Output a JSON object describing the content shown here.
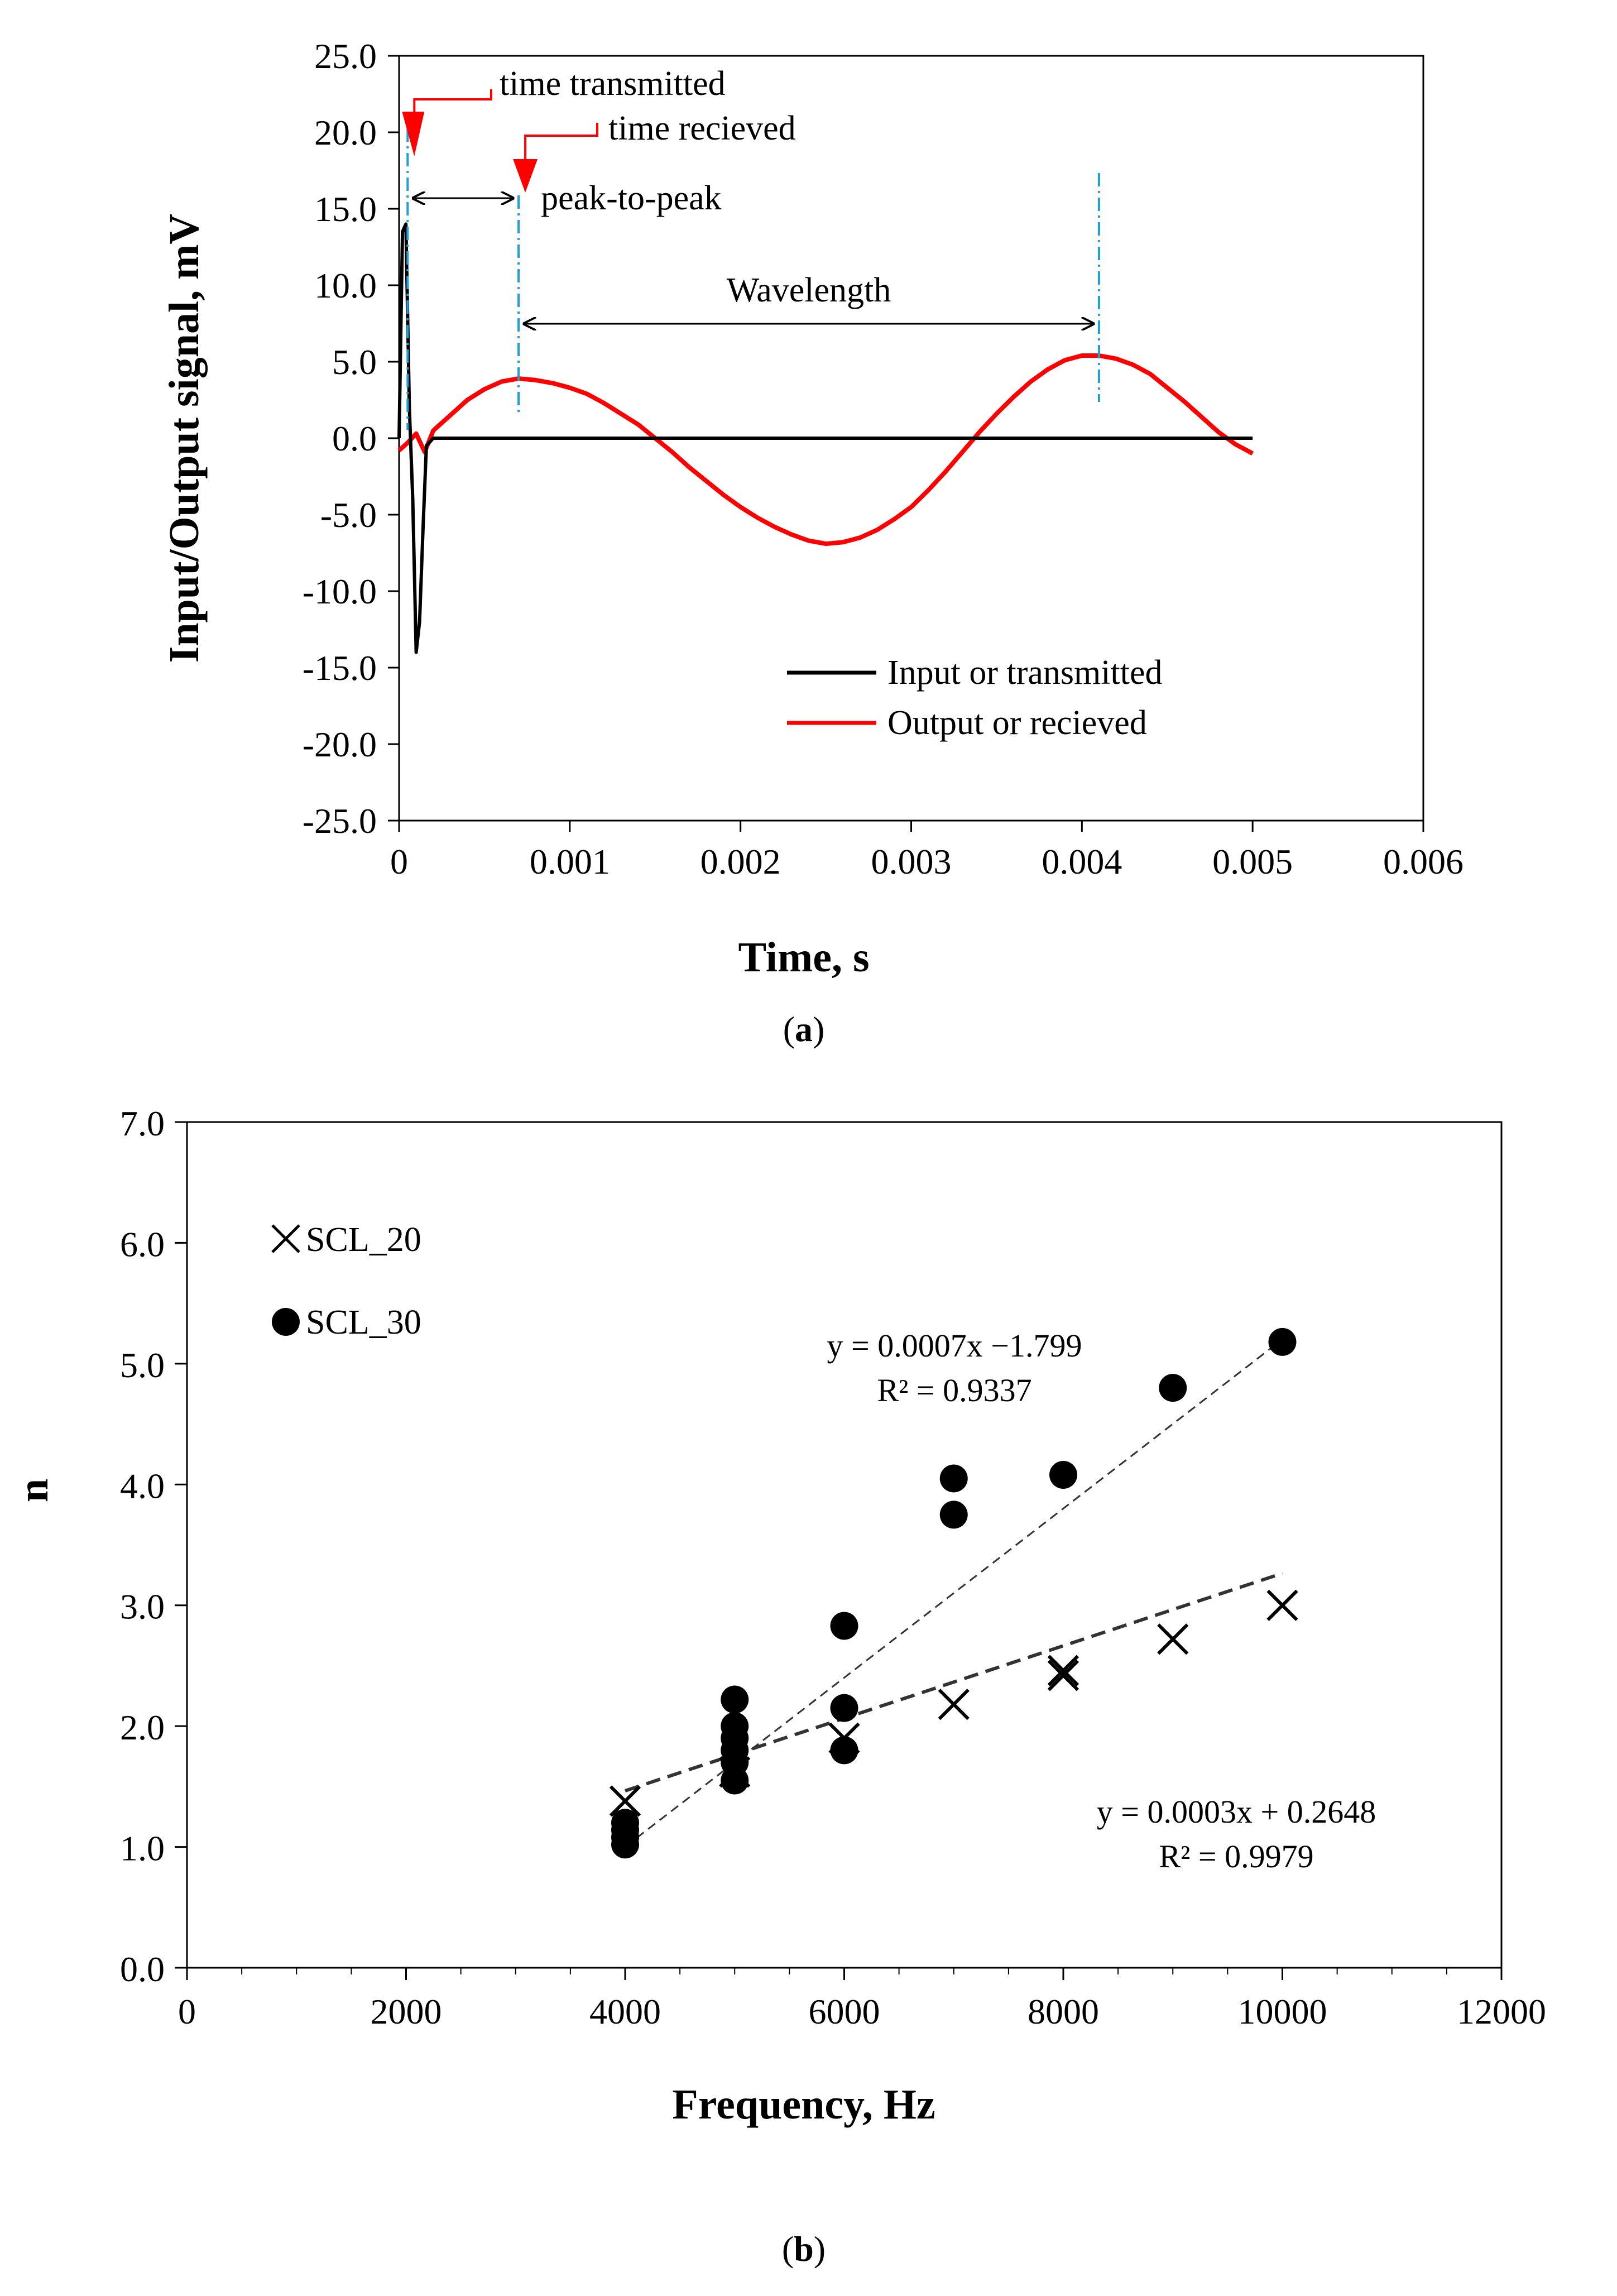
{
  "colors": {
    "input": "#000000",
    "output": "#ff0000",
    "marker_line": "#1f9fd6",
    "arrow_red": "#ff0000",
    "scl20": "#000000",
    "scl30": "#000000"
  },
  "chart_data": [
    {
      "type": "line",
      "caption_prefix": "(",
      "caption_letter": "a",
      "caption_suffix": ")",
      "xlabel": "Time, s",
      "ylabel": "Input/Output signal, mV",
      "xlim": [
        0,
        0.006
      ],
      "ylim": [
        -25,
        25
      ],
      "xticks": [
        "0",
        "0.001",
        "0.002",
        "0.003",
        "0.004",
        "0.005",
        "0.006"
      ],
      "yticks": [
        "25.0",
        "20.0",
        "15.0",
        "10.0",
        "5.0",
        "0.0",
        "-5.0",
        "-10.0",
        "-15.0",
        "-20.0",
        "-25.0"
      ],
      "legend_position": "bottom-right",
      "series": [
        {
          "name": "Input or transmitted",
          "color": "#000000",
          "x": [
            0,
            2e-05,
            4e-05,
            5e-05,
            6e-05,
            8e-05,
            0.0001,
            0.00012,
            0.00014,
            0.00016,
            0.0002,
            0.0005,
            0.001,
            0.002,
            0.003,
            0.004,
            0.005
          ],
          "y": [
            0,
            13.5,
            14.0,
            8.0,
            2.0,
            -4.0,
            -14.0,
            -12.0,
            -6.0,
            -0.5,
            0,
            0,
            0,
            0,
            0,
            0,
            0
          ]
        },
        {
          "name": "Output or recieved",
          "color": "#ff0000",
          "x": [
            0,
            5e-05,
            0.0001,
            0.00015,
            0.0002,
            0.0003,
            0.0004,
            0.0005,
            0.0006,
            0.0007,
            0.0008,
            0.0009,
            0.001,
            0.0011,
            0.0012,
            0.0013,
            0.0014,
            0.0015,
            0.0016,
            0.0017,
            0.0018,
            0.0019,
            0.002,
            0.0021,
            0.0022,
            0.0023,
            0.0024,
            0.0025,
            0.0026,
            0.0027,
            0.0028,
            0.0029,
            0.003,
            0.0031,
            0.0032,
            0.0033,
            0.0034,
            0.0035,
            0.0036,
            0.0037,
            0.0038,
            0.0039,
            0.004,
            0.0041,
            0.0042,
            0.0043,
            0.0044,
            0.0045,
            0.0046,
            0.0047,
            0.0048,
            0.0049,
            0.005
          ],
          "y": [
            -0.8,
            -0.3,
            0.3,
            -0.9,
            0.5,
            1.5,
            2.5,
            3.2,
            3.7,
            3.9,
            3.8,
            3.6,
            3.3,
            2.9,
            2.3,
            1.6,
            0.9,
            0.0,
            -0.9,
            -1.9,
            -2.8,
            -3.7,
            -4.5,
            -5.2,
            -5.8,
            -6.3,
            -6.7,
            -6.9,
            -6.8,
            -6.5,
            -6.0,
            -5.3,
            -4.5,
            -3.4,
            -2.2,
            -0.9,
            0.4,
            1.6,
            2.7,
            3.7,
            4.5,
            5.1,
            5.4,
            5.4,
            5.2,
            4.8,
            4.2,
            3.3,
            2.4,
            1.4,
            0.4,
            -0.4,
            -1.0
          ]
        }
      ],
      "annotations": {
        "time_transmitted": "time transmitted",
        "time_received": "time recieved",
        "peak_to_peak": "peak-to-peak",
        "wavelength": "Wavelength",
        "transmitted_marker_x": 5e-05,
        "received_marker_x": 0.0007,
        "wavelength_end_x": 0.0041
      }
    },
    {
      "type": "scatter",
      "caption_prefix": "(",
      "caption_letter": "b",
      "caption_suffix": ")",
      "xlabel": "Frequency, Hz",
      "ylabel": "n",
      "xlim": [
        0,
        12000
      ],
      "ylim": [
        0,
        7
      ],
      "xticks": [
        "0",
        "2000",
        "4000",
        "6000",
        "8000",
        "10000",
        "12000"
      ],
      "yticks": [
        "7.0",
        "6.0",
        "5.0",
        "4.0",
        "3.0",
        "2.0",
        "1.0",
        "0.0"
      ],
      "legend_position": "top-left",
      "series": [
        {
          "name": "SCL_20",
          "marker": "x",
          "x": [
            4000,
            5000,
            6000,
            7000,
            8000,
            8000,
            9000,
            10000
          ],
          "y": [
            1.38,
            1.62,
            1.9,
            2.18,
            2.42,
            2.46,
            2.72,
            3.0
          ]
        },
        {
          "name": "SCL_30",
          "marker": "circle",
          "x": [
            4000,
            4000,
            4000,
            4000,
            5000,
            5000,
            5000,
            5000,
            5000,
            5000,
            6000,
            6000,
            6000,
            7000,
            7000,
            8000,
            9000,
            10000
          ],
          "y": [
            1.02,
            1.08,
            1.14,
            1.2,
            1.55,
            1.7,
            1.8,
            1.9,
            2.0,
            2.22,
            1.8,
            2.15,
            2.83,
            3.75,
            4.05,
            4.08,
            4.8,
            5.18
          ]
        }
      ],
      "trendlines": [
        {
          "series": "SCL_30",
          "slope": 0.0007,
          "intercept": -1.799,
          "x_range": [
            4000,
            10000
          ],
          "equation": "y = 0.0007x −1.799",
          "r2": "R² = 0.9337"
        },
        {
          "series": "SCL_20",
          "slope": 0.0003,
          "intercept": 0.2648,
          "x_range": [
            4000,
            10000
          ],
          "equation": "y = 0.0003x + 0.2648",
          "r2": "R² = 0.9979"
        }
      ]
    }
  ]
}
